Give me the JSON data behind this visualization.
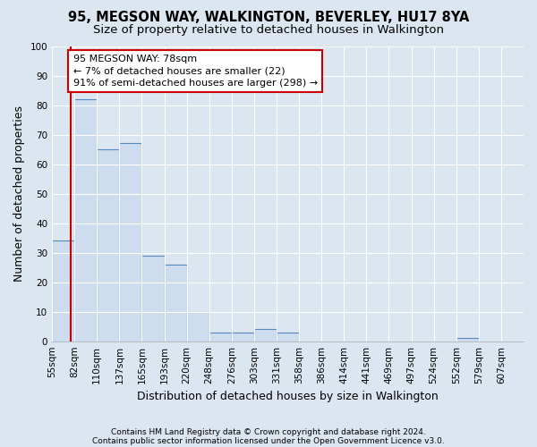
{
  "title": "95, MEGSON WAY, WALKINGTON, BEVERLEY, HU17 8YA",
  "subtitle": "Size of property relative to detached houses in Walkington",
  "xlabel": "Distribution of detached houses by size in Walkington",
  "ylabel": "Number of detached properties",
  "footnote1": "Contains HM Land Registry data © Crown copyright and database right 2024.",
  "footnote2": "Contains public sector information licensed under the Open Government Licence v3.0.",
  "bin_labels": [
    "55sqm",
    "82sqm",
    "110sqm",
    "137sqm",
    "165sqm",
    "193sqm",
    "220sqm",
    "248sqm",
    "276sqm",
    "303sqm",
    "331sqm",
    "358sqm",
    "386sqm",
    "414sqm",
    "441sqm",
    "469sqm",
    "497sqm",
    "524sqm",
    "552sqm",
    "579sqm",
    "607sqm"
  ],
  "bar_heights": [
    34,
    82,
    65,
    67,
    29,
    26,
    10,
    3,
    3,
    4,
    3,
    0,
    0,
    0,
    0,
    0,
    0,
    0,
    1,
    0,
    0
  ],
  "bar_color": "#cddcee",
  "bar_edge_color": "#5588bb",
  "property_size": 78,
  "property_line_color": "#cc0000",
  "annotation_line1": "95 MEGSON WAY: 78sqm",
  "annotation_line2": "← 7% of detached houses are smaller (22)",
  "annotation_line3": "91% of semi-detached houses are larger (298) →",
  "annotation_box_color": "#ffffff",
  "annotation_border_color": "#cc0000",
  "ylim": [
    0,
    100
  ],
  "bin_width": 27.5,
  "background_color": "#dce6f1",
  "plot_bg_color": "#dce6f1",
  "grid_color": "#ffffff",
  "title_fontsize": 10.5,
  "subtitle_fontsize": 9.5,
  "tick_fontsize": 7.5,
  "ylabel_fontsize": 9,
  "xlabel_fontsize": 9
}
